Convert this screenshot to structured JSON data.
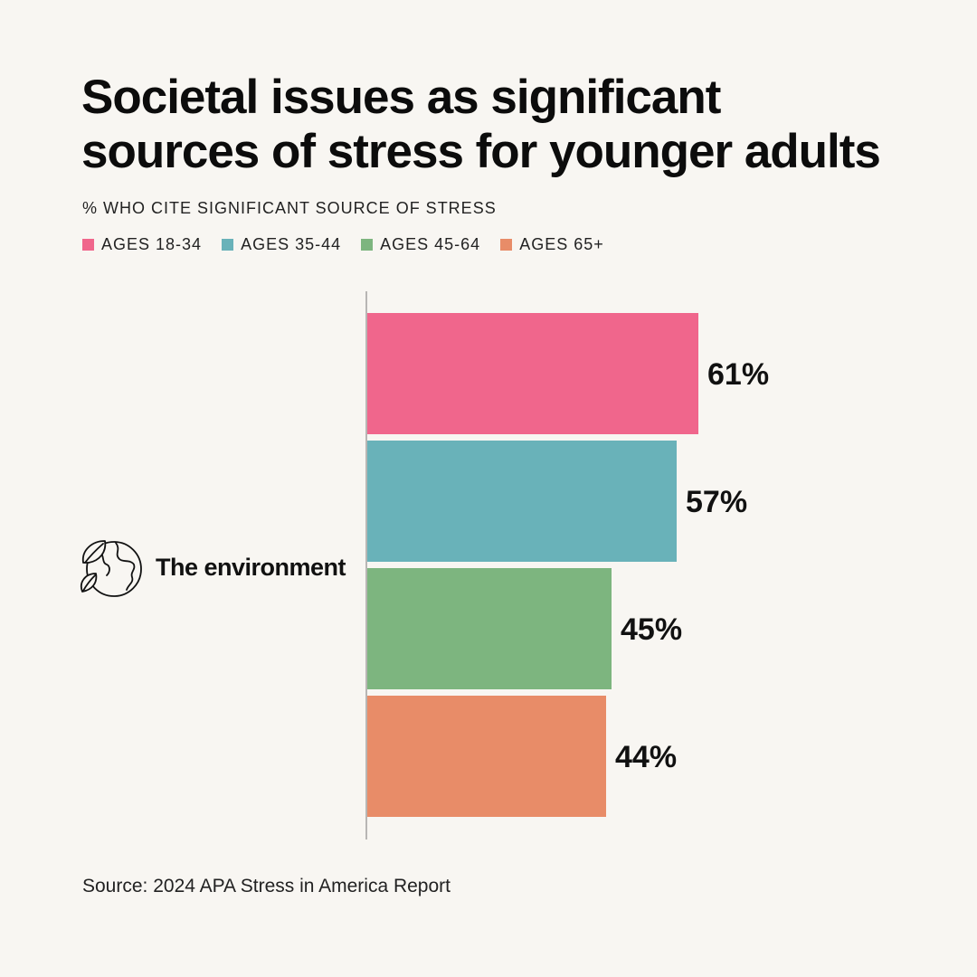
{
  "title_lines": [
    "Societal issues as significant",
    "sources of stress for younger adults"
  ],
  "subtitle": "% WHO CITE SIGNIFICANT SOURCE OF STRESS",
  "legend": [
    {
      "label": "AGES 18-34",
      "color": "#f0668c"
    },
    {
      "label": "AGES 35-44",
      "color": "#69b2b9"
    },
    {
      "label": "AGES 45-64",
      "color": "#7db57f"
    },
    {
      "label": "AGES 65+",
      "color": "#e88c68"
    }
  ],
  "category": {
    "label": "The environment",
    "icon": "earth-leaves-icon"
  },
  "source": "Source: 2024 APA Stress in America Report",
  "chart_data": {
    "type": "bar",
    "orientation": "horizontal",
    "title": "Societal issues as significant sources of stress for younger adults",
    "subtitle": "% WHO CITE SIGNIFICANT SOURCE OF STRESS",
    "categories": [
      "The environment"
    ],
    "series": [
      {
        "name": "AGES 18-34",
        "values": [
          61
        ],
        "color": "#f0668c",
        "label": "61%"
      },
      {
        "name": "AGES 35-44",
        "values": [
          57
        ],
        "color": "#69b2b9",
        "label": "57%"
      },
      {
        "name": "AGES 45-64",
        "values": [
          45
        ],
        "color": "#7db57f",
        "label": "45%"
      },
      {
        "name": "AGES 65+",
        "values": [
          44
        ],
        "color": "#e88c68",
        "label": "44%"
      }
    ],
    "xlim": [
      0,
      100
    ],
    "xlabel": "",
    "ylabel": "",
    "grid": false,
    "legend_position": "top-left"
  }
}
